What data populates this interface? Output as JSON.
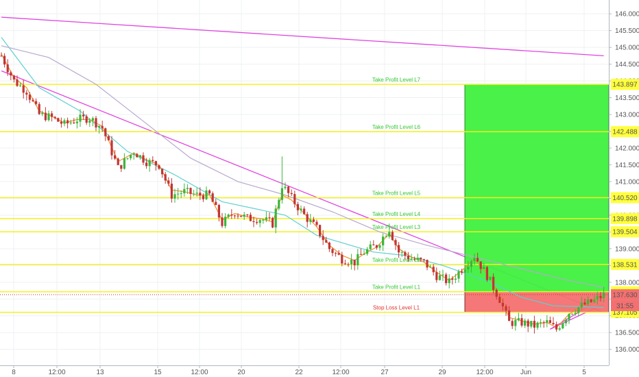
{
  "colors": {
    "background": "#ffffff",
    "grid": "#eef0f3",
    "level_line": "#f5f21e",
    "level_badge": "#ffff3b",
    "target_zone": "#3ff03f",
    "stop_zone": "#f47070",
    "stop_zone_border": "#7b2a2a",
    "trend_line": "#e044e0",
    "ma_teal": "#5fcfcf",
    "ma_lavender": "#b8a8cf",
    "ma_orange": "#f0902a",
    "candle_up": "#3cb53c",
    "candle_down": "#c23535",
    "price_badge": "#f47070",
    "timer_badge": "#f47070",
    "label_green": "#32c832",
    "label_red": "#e03333"
  },
  "chart_data": {
    "type": "candlestick",
    "title": "",
    "xlabel": "",
    "ylabel": "",
    "ylim": [
      135.8,
      146.3
    ],
    "x_ticks": [
      "8",
      "12:00",
      "13",
      "15",
      "12:00",
      "20",
      "22",
      "12:00",
      "27",
      "29",
      "12:00",
      "Jun",
      "5"
    ],
    "y_ticks": [
      "136.000",
      "136.500",
      "137.000",
      "137.500",
      "138.000",
      "138.500",
      "139.000",
      "139.500",
      "140.000",
      "140.500",
      "141.000",
      "141.500",
      "142.000",
      "142.500",
      "143.000",
      "143.500",
      "144.000",
      "144.500",
      "145.000",
      "145.500",
      "146.000"
    ],
    "levels": [
      {
        "label": "Take Profit Level L7",
        "price": "143.897",
        "value": 143.897,
        "kind": "tp"
      },
      {
        "label": "Take Profit Level L6",
        "price": "142.488",
        "value": 142.488,
        "kind": "tp"
      },
      {
        "label": "Take Profit Level L5",
        "price": "140.520",
        "value": 140.52,
        "kind": "tp"
      },
      {
        "label": "Take Profit Level L4",
        "price": "139.898",
        "value": 139.898,
        "kind": "tp"
      },
      {
        "label": "Take Profit Level L3",
        "price": "139.504",
        "value": 139.504,
        "kind": "tp"
      },
      {
        "label": "Take Profit Level L2",
        "price": "138.531",
        "value": 138.531,
        "kind": "tp"
      },
      {
        "label": "Take Profit Level L1",
        "price": "137.716",
        "value": 137.716,
        "kind": "tp"
      },
      {
        "label": "Stop Loss Level L1",
        "price": "137.105",
        "value": 137.105,
        "kind": "sl"
      }
    ],
    "current_price": {
      "label": "137.630",
      "value": 137.63
    },
    "countdown": "31:55",
    "position": {
      "entry": 137.716,
      "target": 143.897,
      "stop": 137.105,
      "start_index": 138,
      "end_index": 191
    },
    "trend_lines": [
      {
        "from": [
          0,
          145.9
        ],
        "to": [
          191,
          144.75
        ]
      },
      {
        "from": [
          0,
          144.3
        ],
        "to": [
          191,
          137.1
        ]
      },
      {
        "from": [
          174,
          136.6
        ],
        "to": [
          191,
          137.35
        ]
      },
      {
        "from": [
          174,
          136.6
        ],
        "to": [
          191,
          137.55
        ]
      }
    ],
    "candle_anchors": [
      [
        0,
        144.75
      ],
      [
        4,
        144.0
      ],
      [
        8,
        143.7
      ],
      [
        12,
        143.0
      ],
      [
        16,
        142.9
      ],
      [
        20,
        142.7
      ],
      [
        24,
        142.85
      ],
      [
        28,
        142.9
      ],
      [
        32,
        142.6
      ],
      [
        37,
        141.4
      ],
      [
        42,
        141.9
      ],
      [
        46,
        141.6
      ],
      [
        50,
        141.5
      ],
      [
        54,
        140.6
      ],
      [
        58,
        140.7
      ],
      [
        62,
        140.6
      ],
      [
        66,
        140.6
      ],
      [
        70,
        139.75
      ],
      [
        74,
        140.1
      ],
      [
        78,
        139.9
      ],
      [
        82,
        139.9
      ],
      [
        86,
        139.75
      ],
      [
        89,
        140.9
      ],
      [
        92,
        140.5
      ],
      [
        96,
        140.0
      ],
      [
        100,
        139.6
      ],
      [
        104,
        139.0
      ],
      [
        108,
        138.7
      ],
      [
        112,
        138.6
      ],
      [
        115,
        138.9
      ],
      [
        119,
        139.1
      ],
      [
        123,
        139.6
      ],
      [
        126,
        138.9
      ],
      [
        130,
        138.7
      ],
      [
        134,
        138.6
      ],
      [
        138,
        138.2
      ],
      [
        142,
        138.0
      ],
      [
        146,
        138.4
      ],
      [
        150,
        138.8
      ],
      [
        154,
        138.2
      ],
      [
        158,
        137.5
      ],
      [
        161,
        136.8
      ],
      [
        165,
        136.8
      ],
      [
        169,
        136.7
      ],
      [
        173,
        136.8
      ],
      [
        176,
        136.6
      ],
      [
        180,
        137.1
      ],
      [
        184,
        137.3
      ],
      [
        188,
        137.45
      ],
      [
        191,
        137.63
      ]
    ],
    "moving_averages": [
      {
        "color": "ma_teal",
        "points": [
          [
            0,
            145.3
          ],
          [
            12,
            143.8
          ],
          [
            25,
            143.1
          ],
          [
            40,
            141.9
          ],
          [
            55,
            141.2
          ],
          [
            70,
            140.4
          ],
          [
            90,
            140.0
          ],
          [
            100,
            139.4
          ],
          [
            118,
            138.9
          ],
          [
            128,
            138.8
          ],
          [
            140,
            138.5
          ],
          [
            155,
            138.0
          ],
          [
            165,
            137.55
          ],
          [
            175,
            137.3
          ],
          [
            191,
            137.25
          ]
        ]
      },
      {
        "color": "ma_lavender",
        "points": [
          [
            0,
            145.05
          ],
          [
            15,
            144.7
          ],
          [
            30,
            143.9
          ],
          [
            45,
            142.8
          ],
          [
            60,
            141.7
          ],
          [
            75,
            141.0
          ],
          [
            90,
            140.6
          ],
          [
            105,
            140.1
          ],
          [
            120,
            139.5
          ],
          [
            135,
            139.1
          ],
          [
            150,
            138.75
          ],
          [
            165,
            138.4
          ],
          [
            180,
            138.05
          ],
          [
            191,
            137.85
          ]
        ]
      },
      {
        "color": "ma_orange",
        "points": [
          [
            0,
            144.8
          ],
          [
            4,
            144.1
          ],
          [
            8,
            143.8
          ],
          [
            12,
            143.1
          ],
          [
            16,
            142.95
          ],
          [
            20,
            142.75
          ],
          [
            24,
            142.85
          ],
          [
            28,
            142.85
          ],
          [
            32,
            142.65
          ],
          [
            37,
            141.6
          ],
          [
            42,
            141.85
          ],
          [
            46,
            141.65
          ],
          [
            50,
            141.5
          ],
          [
            54,
            140.75
          ],
          [
            58,
            140.7
          ],
          [
            62,
            140.6
          ],
          [
            66,
            140.6
          ],
          [
            70,
            139.85
          ],
          [
            74,
            140.05
          ],
          [
            78,
            139.95
          ],
          [
            82,
            139.9
          ],
          [
            86,
            139.8
          ],
          [
            89,
            140.6
          ],
          [
            92,
            140.45
          ],
          [
            96,
            140.05
          ],
          [
            100,
            139.65
          ],
          [
            104,
            139.1
          ],
          [
            108,
            138.8
          ],
          [
            112,
            138.65
          ],
          [
            115,
            138.85
          ],
          [
            119,
            139.05
          ],
          [
            123,
            139.45
          ],
          [
            126,
            139.0
          ],
          [
            130,
            138.75
          ],
          [
            134,
            138.6
          ],
          [
            138,
            138.3
          ],
          [
            142,
            138.05
          ],
          [
            146,
            138.35
          ],
          [
            150,
            138.7
          ],
          [
            154,
            138.25
          ],
          [
            158,
            137.6
          ],
          [
            161,
            136.95
          ],
          [
            165,
            136.85
          ],
          [
            169,
            136.75
          ],
          [
            173,
            136.8
          ],
          [
            176,
            136.65
          ],
          [
            180,
            137.05
          ],
          [
            184,
            137.3
          ],
          [
            188,
            137.45
          ],
          [
            191,
            137.6
          ]
        ]
      }
    ],
    "grid": true
  }
}
